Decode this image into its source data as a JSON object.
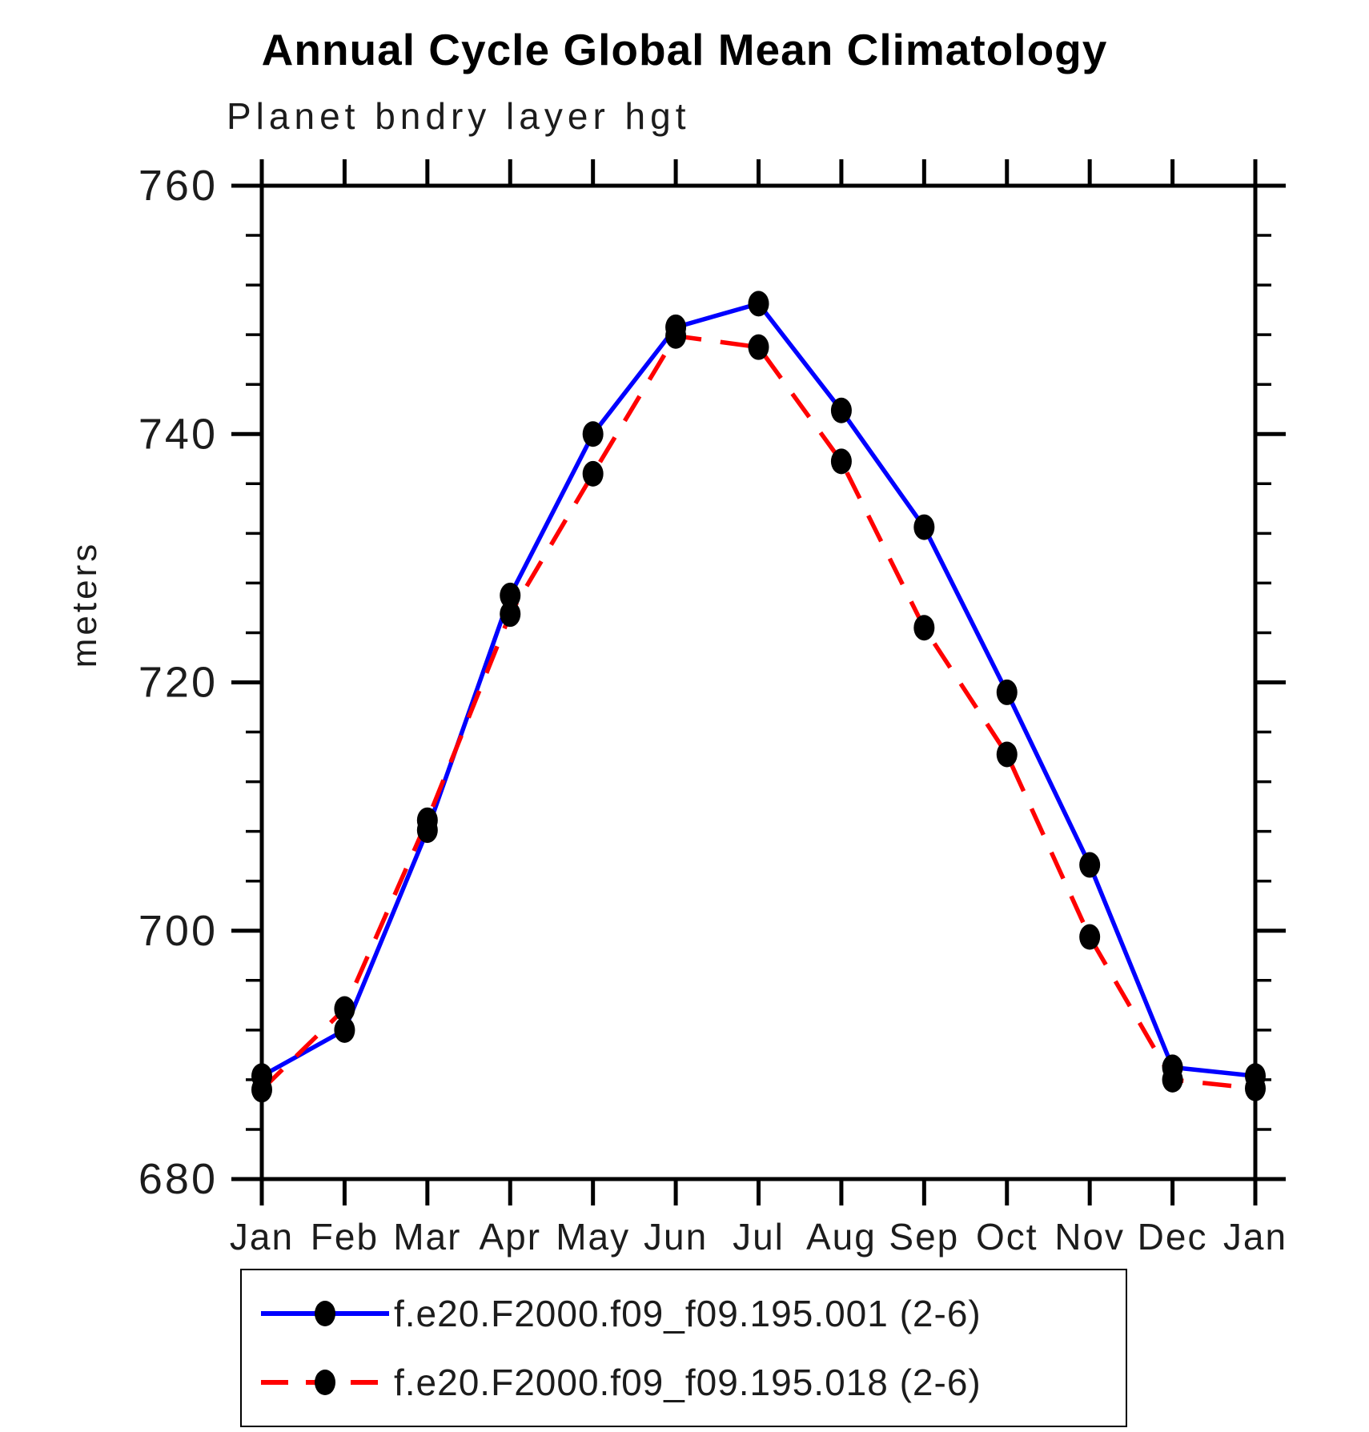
{
  "chart_data": {
    "type": "line",
    "title": "Annual Cycle Global Mean Climatology",
    "subtitle": "Planet bndry layer hgt",
    "ylabel": "meters",
    "xlabel": "",
    "x_tick_labels": [
      "Jan",
      "Feb",
      "Mar",
      "Apr",
      "May",
      "Jun",
      "Jul",
      "Aug",
      "Sep",
      "Oct",
      "Nov",
      "Dec",
      "Jan"
    ],
    "ylim": [
      680,
      760
    ],
    "y_major_ticks": [
      680,
      700,
      720,
      740,
      760
    ],
    "y_minor_step": 4,
    "grid": false,
    "legend_position": "bottom",
    "axis_color": "#000000",
    "marker_color": "#000000",
    "series": [
      {
        "name": "f.e20.F2000.f09_f09.195.001 (2-6)",
        "color": "#0000ff",
        "style": "solid",
        "marker": "filled-circle",
        "values": [
          688.3,
          692.0,
          708.1,
          727.0,
          740.0,
          748.6,
          750.5,
          741.9,
          732.5,
          719.2,
          705.3,
          689.0,
          688.3
        ]
      },
      {
        "name": "f.e20.F2000.f09_f09.195.018 (2-6)",
        "color": "#ff0000",
        "style": "dashed",
        "marker": "filled-circle",
        "values": [
          687.2,
          693.7,
          708.9,
          725.5,
          736.8,
          747.9,
          747.0,
          737.8,
          724.4,
          714.2,
          699.5,
          688.0,
          687.3
        ]
      }
    ]
  }
}
